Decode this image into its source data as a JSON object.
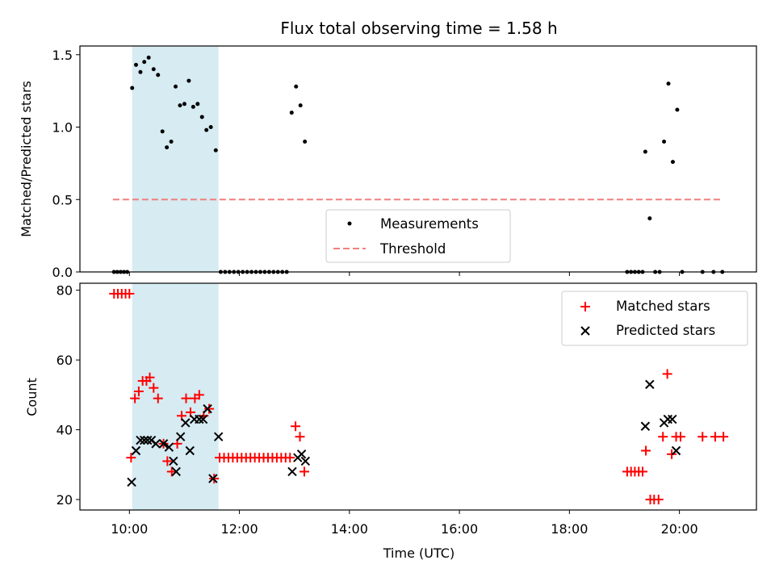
{
  "chart_data": {
    "title": "Flux total observing time = 1.58 h",
    "x_axis": {
      "label": "Time (UTC)",
      "range_hours": [
        9.1,
        21.4
      ],
      "ticks": [
        {
          "value": 10,
          "label": "10:00"
        },
        {
          "value": 12,
          "label": "12:00"
        },
        {
          "value": 14,
          "label": "14:00"
        },
        {
          "value": 16,
          "label": "16:00"
        },
        {
          "value": 18,
          "label": "18:00"
        },
        {
          "value": 20,
          "label": "20:00"
        }
      ]
    },
    "highlight_span_hours": [
      10.05,
      11.62
    ],
    "panels": [
      {
        "type": "scatter",
        "ylabel": "Matched/Predicted stars",
        "ylim": [
          0,
          1.56
        ],
        "yticks": [
          {
            "value": 0,
            "label": "0.0"
          },
          {
            "value": 0.5,
            "label": "0.5"
          },
          {
            "value": 1.0,
            "label": "1.0"
          },
          {
            "value": 1.5,
            "label": "1.5"
          }
        ],
        "legend": [
          "Measurements",
          "Threshold"
        ],
        "threshold": {
          "value": 0.5,
          "x_range": [
            9.7,
            20.75
          ],
          "color": "#f08080"
        },
        "series": [
          {
            "name": "Measurements",
            "color": "#000000",
            "points": [
              [
                9.72,
                0
              ],
              [
                9.78,
                0
              ],
              [
                9.84,
                0
              ],
              [
                9.9,
                0
              ],
              [
                9.96,
                0
              ],
              [
                10.05,
                1.27
              ],
              [
                10.12,
                1.43
              ],
              [
                10.2,
                1.38
              ],
              [
                10.27,
                1.45
              ],
              [
                10.35,
                1.48
              ],
              [
                10.44,
                1.4
              ],
              [
                10.52,
                1.36
              ],
              [
                10.6,
                0.97
              ],
              [
                10.68,
                0.86
              ],
              [
                10.76,
                0.9
              ],
              [
                10.84,
                1.28
              ],
              [
                10.92,
                1.15
              ],
              [
                11.0,
                1.16
              ],
              [
                11.08,
                1.32
              ],
              [
                11.16,
                1.14
              ],
              [
                11.24,
                1.16
              ],
              [
                11.32,
                1.07
              ],
              [
                11.4,
                0.98
              ],
              [
                11.48,
                1.0
              ],
              [
                11.57,
                0.84
              ],
              [
                11.66,
                0
              ],
              [
                11.74,
                0
              ],
              [
                11.82,
                0
              ],
              [
                11.9,
                0
              ],
              [
                11.98,
                0
              ],
              [
                12.06,
                0
              ],
              [
                12.14,
                0
              ],
              [
                12.22,
                0
              ],
              [
                12.3,
                0
              ],
              [
                12.38,
                0
              ],
              [
                12.46,
                0
              ],
              [
                12.54,
                0
              ],
              [
                12.62,
                0
              ],
              [
                12.7,
                0
              ],
              [
                12.78,
                0
              ],
              [
                12.86,
                0
              ],
              [
                12.95,
                1.1
              ],
              [
                13.03,
                1.28
              ],
              [
                13.11,
                1.15
              ],
              [
                13.19,
                0.9
              ],
              [
                19.05,
                0
              ],
              [
                19.12,
                0
              ],
              [
                19.19,
                0
              ],
              [
                19.26,
                0
              ],
              [
                19.33,
                0
              ],
              [
                19.38,
                0.83
              ],
              [
                19.46,
                0.37
              ],
              [
                19.56,
                0
              ],
              [
                19.64,
                0
              ],
              [
                19.72,
                0.9
              ],
              [
                19.8,
                1.3
              ],
              [
                19.88,
                0.76
              ],
              [
                19.96,
                1.12
              ],
              [
                20.05,
                0
              ],
              [
                20.42,
                0
              ],
              [
                20.62,
                0
              ],
              [
                20.78,
                0
              ]
            ]
          }
        ]
      },
      {
        "type": "scatter",
        "ylabel": "Count",
        "ylim": [
          17,
          82
        ],
        "yticks": [
          {
            "value": 20,
            "label": "20"
          },
          {
            "value": 40,
            "label": "40"
          },
          {
            "value": 60,
            "label": "60"
          },
          {
            "value": 80,
            "label": "80"
          }
        ],
        "legend": [
          "Matched stars",
          "Predicted stars"
        ],
        "series": [
          {
            "name": "Matched stars",
            "marker": "plus",
            "color": "#ff0000",
            "points": [
              [
                9.72,
                79
              ],
              [
                9.79,
                79
              ],
              [
                9.86,
                79
              ],
              [
                9.93,
                79
              ],
              [
                10.0,
                79
              ],
              [
                10.03,
                32
              ],
              [
                10.1,
                49
              ],
              [
                10.17,
                51
              ],
              [
                10.24,
                54
              ],
              [
                10.31,
                54
              ],
              [
                10.37,
                55
              ],
              [
                10.44,
                52
              ],
              [
                10.52,
                49
              ],
              [
                10.62,
                36
              ],
              [
                10.69,
                31
              ],
              [
                10.77,
                28
              ],
              [
                10.87,
                36
              ],
              [
                10.95,
                44
              ],
              [
                11.03,
                49
              ],
              [
                11.11,
                45
              ],
              [
                11.19,
                49
              ],
              [
                11.27,
                50
              ],
              [
                11.35,
                44
              ],
              [
                11.45,
                46
              ],
              [
                11.54,
                26
              ],
              [
                11.64,
                32
              ],
              [
                11.72,
                32
              ],
              [
                11.8,
                32
              ],
              [
                11.88,
                32
              ],
              [
                11.96,
                32
              ],
              [
                12.04,
                32
              ],
              [
                12.12,
                32
              ],
              [
                12.2,
                32
              ],
              [
                12.28,
                32
              ],
              [
                12.36,
                32
              ],
              [
                12.44,
                32
              ],
              [
                12.52,
                32
              ],
              [
                12.6,
                32
              ],
              [
                12.68,
                32
              ],
              [
                12.76,
                32
              ],
              [
                12.84,
                32
              ],
              [
                12.92,
                32
              ],
              [
                13.02,
                41
              ],
              [
                13.1,
                38
              ],
              [
                13.18,
                28
              ],
              [
                19.05,
                28
              ],
              [
                19.12,
                28
              ],
              [
                19.19,
                28
              ],
              [
                19.26,
                28
              ],
              [
                19.33,
                28
              ],
              [
                19.39,
                34
              ],
              [
                19.47,
                20
              ],
              [
                19.54,
                20
              ],
              [
                19.62,
                20
              ],
              [
                19.7,
                38
              ],
              [
                19.78,
                56
              ],
              [
                19.86,
                33
              ],
              [
                19.94,
                38
              ],
              [
                20.02,
                38
              ],
              [
                20.42,
                38
              ],
              [
                20.65,
                38
              ],
              [
                20.8,
                38
              ]
            ]
          },
          {
            "name": "Predicted stars",
            "marker": "x",
            "color": "#000000",
            "points": [
              [
                10.04,
                25
              ],
              [
                10.12,
                34
              ],
              [
                10.2,
                37
              ],
              [
                10.27,
                37
              ],
              [
                10.33,
                37
              ],
              [
                10.4,
                37
              ],
              [
                10.48,
                36
              ],
              [
                10.62,
                36
              ],
              [
                10.72,
                35
              ],
              [
                10.8,
                31
              ],
              [
                10.85,
                28
              ],
              [
                10.93,
                38
              ],
              [
                11.02,
                42
              ],
              [
                11.1,
                34
              ],
              [
                11.18,
                43
              ],
              [
                11.27,
                43
              ],
              [
                11.34,
                43
              ],
              [
                11.42,
                46
              ],
              [
                11.52,
                26
              ],
              [
                11.62,
                38
              ],
              [
                12.96,
                28
              ],
              [
                13.06,
                32
              ],
              [
                13.13,
                33
              ],
              [
                13.2,
                31
              ],
              [
                19.38,
                41
              ],
              [
                19.46,
                53
              ],
              [
                19.72,
                42
              ],
              [
                19.79,
                43
              ],
              [
                19.87,
                43
              ],
              [
                19.94,
                34
              ]
            ]
          }
        ]
      }
    ]
  }
}
